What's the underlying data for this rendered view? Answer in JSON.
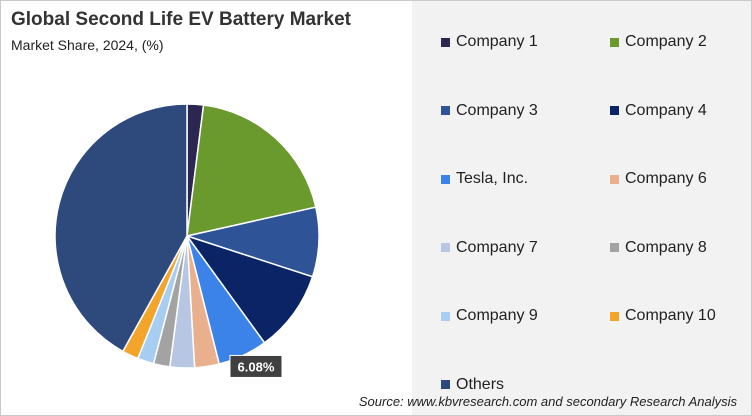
{
  "chart_data": {
    "type": "pie",
    "title": "Global Second Life EV Battery Market",
    "subtitle": "Market Share, 2024, (%)",
    "categories": [
      "Company 1",
      "Company 2",
      "Company 3",
      "Company 4",
      "Tesla, Inc.",
      "Company 6",
      "Company 7",
      "Company 8",
      "Company 9",
      "Company 10",
      "Others"
    ],
    "values": [
      2.0,
      19.5,
      8.5,
      10.0,
      6.08,
      3.0,
      3.0,
      2.0,
      2.0,
      2.0,
      41.92
    ],
    "colors": [
      "#2c2750",
      "#6a9a2e",
      "#2e5497",
      "#0a2466",
      "#3b83e8",
      "#eab08d",
      "#b7c7e3",
      "#a3a3a3",
      "#a8cdf2",
      "#f2a52a",
      "#2e4a7d"
    ],
    "data_labels": [
      {
        "index": 4,
        "text": "6.08%"
      }
    ],
    "legend_position": "right",
    "start_angle": 0,
    "direction": "clockwise"
  },
  "source": "Source: www.kbvresearch.com and secondary Research Analysis"
}
